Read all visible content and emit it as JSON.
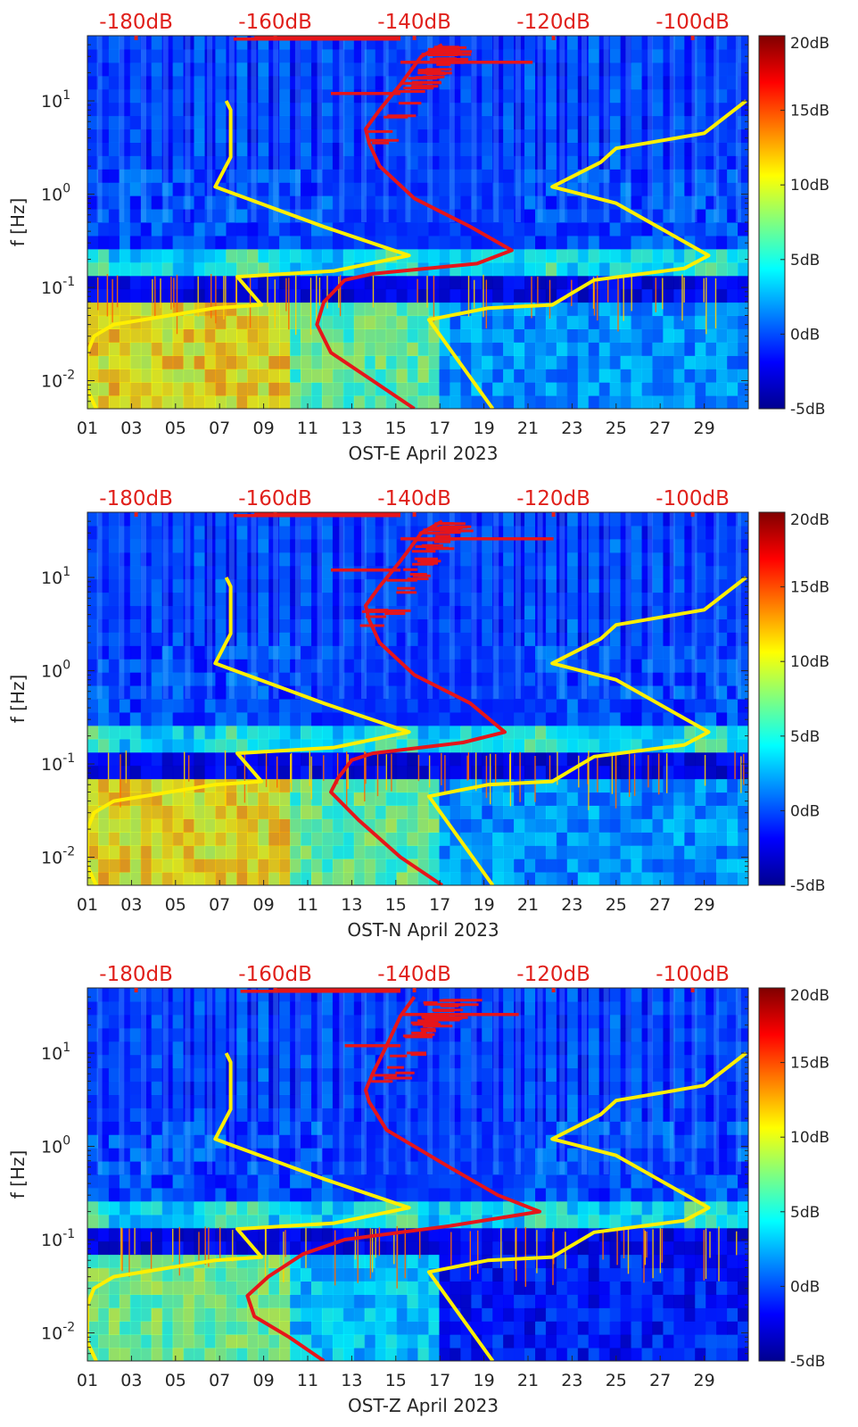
{
  "chart_data": [
    {
      "type": "heatmap",
      "xlabel": "OST-E April 2023",
      "ylabel": "f [Hz]",
      "x_ticks": [
        "01",
        "03",
        "05",
        "07",
        "09",
        "11",
        "13",
        "15",
        "17",
        "19",
        "21",
        "23",
        "25",
        "27",
        "29"
      ],
      "x_range_days": [
        1,
        31
      ],
      "y_scale": "log",
      "y_range_hz": [
        0.005,
        50
      ],
      "y_ticks": [
        {
          "base": "10",
          "exp": "-2",
          "value": 0.01
        },
        {
          "base": "10",
          "exp": "-1",
          "value": 0.1
        },
        {
          "base": "10",
          "exp": "0",
          "value": 1
        },
        {
          "base": "10",
          "exp": "1",
          "value": 10
        }
      ],
      "colorbar": {
        "range_db": [
          -5,
          20
        ],
        "ticks": [
          "20dB",
          "15dB",
          "10dB",
          "5dB",
          "0dB",
          "-5dB"
        ],
        "tick_values": [
          20,
          15,
          10,
          5,
          0,
          -5
        ]
      },
      "top_axis": {
        "color": "#e0201b",
        "ticks": [
          "-180dB",
          "-160dB",
          "-140dB",
          "-120dB",
          "-100dB"
        ],
        "tick_values": [
          -180,
          -160,
          -140,
          -120,
          -100
        ],
        "range_db": [
          -187,
          -92
        ]
      },
      "series": [
        {
          "color": "#ffef00",
          "points": [
            [
              7.3,
              10
            ],
            [
              7.5,
              8
            ],
            [
              7.5,
              2.5
            ],
            [
              6.8,
              1.2
            ],
            [
              11.7,
              0.45
            ],
            [
              15.6,
              0.22
            ],
            [
              12.2,
              0.15
            ],
            [
              7.8,
              0.13
            ],
            [
              8.9,
              0.065
            ],
            [
              6.8,
              0.06
            ],
            [
              2.2,
              0.04
            ],
            [
              1.3,
              0.03
            ],
            [
              1.0,
              0.02
            ],
            [
              1.0,
              0.008
            ],
            [
              1.4,
              0.005
            ]
          ]
        },
        {
          "color": "#ffef00",
          "points": [
            [
              30.9,
              10
            ],
            [
              29.0,
              4.5
            ],
            [
              25.0,
              3.1
            ],
            [
              24.3,
              2.2
            ],
            [
              22.1,
              1.2
            ],
            [
              25.0,
              0.8
            ],
            [
              29.2,
              0.22
            ],
            [
              28.1,
              0.16
            ],
            [
              24.0,
              0.12
            ],
            [
              22.1,
              0.065
            ],
            [
              19.2,
              0.06
            ],
            [
              16.5,
              0.045
            ],
            [
              19.4,
              0.005
            ]
          ]
        },
        {
          "color": "#e6151a",
          "points": [
            [
              -136,
              40
            ],
            [
              -139,
              30
            ],
            [
              -142,
              15
            ],
            [
              -145,
              8
            ],
            [
              -147,
              5
            ],
            [
              -146.5,
              3.5
            ],
            [
              -145,
              2
            ],
            [
              -140,
              0.9
            ],
            [
              -132,
              0.45
            ],
            [
              -126,
              0.25
            ],
            [
              -131,
              0.18
            ],
            [
              -146,
              0.14
            ],
            [
              -150,
              0.12
            ],
            [
              -153,
              0.07
            ],
            [
              -154,
              0.04
            ],
            [
              -152,
              0.02
            ],
            [
              -146,
              0.01
            ],
            [
              -140,
              0.005
            ]
          ]
        }
      ],
      "noise_band_db": [
        [
          -163,
          48
        ],
        [
          -166,
          46
        ],
        [
          -123,
          26
        ],
        [
          -152,
          12
        ]
      ]
    },
    {
      "type": "heatmap",
      "xlabel": "OST-N April 2023",
      "ylabel": "f [Hz]",
      "x_ticks": [
        "01",
        "03",
        "05",
        "07",
        "09",
        "11",
        "13",
        "15",
        "17",
        "19",
        "21",
        "23",
        "25",
        "27",
        "29"
      ],
      "x_range_days": [
        1,
        31
      ],
      "y_scale": "log",
      "y_range_hz": [
        0.005,
        50
      ],
      "y_ticks": [
        {
          "base": "10",
          "exp": "-2",
          "value": 0.01
        },
        {
          "base": "10",
          "exp": "-1",
          "value": 0.1
        },
        {
          "base": "10",
          "exp": "0",
          "value": 1
        },
        {
          "base": "10",
          "exp": "1",
          "value": 10
        }
      ],
      "colorbar": {
        "range_db": [
          -5,
          20
        ],
        "ticks": [
          "20dB",
          "15dB",
          "10dB",
          "5dB",
          "0dB",
          "-5dB"
        ],
        "tick_values": [
          20,
          15,
          10,
          5,
          0,
          -5
        ]
      },
      "top_axis": {
        "color": "#e0201b",
        "ticks": [
          "-180dB",
          "-160dB",
          "-140dB",
          "-120dB",
          "-100dB"
        ],
        "tick_values": [
          -180,
          -160,
          -140,
          -120,
          -100
        ],
        "range_db": [
          -187,
          -92
        ]
      },
      "series": [
        {
          "color": "#ffef00",
          "points": [
            [
              7.3,
              10
            ],
            [
              7.5,
              8
            ],
            [
              7.5,
              2.5
            ],
            [
              6.8,
              1.2
            ],
            [
              11.7,
              0.45
            ],
            [
              15.6,
              0.22
            ],
            [
              12.2,
              0.15
            ],
            [
              7.8,
              0.13
            ],
            [
              8.9,
              0.065
            ],
            [
              6.8,
              0.06
            ],
            [
              2.2,
              0.04
            ],
            [
              1.3,
              0.03
            ],
            [
              1.0,
              0.02
            ],
            [
              1.0,
              0.008
            ],
            [
              1.4,
              0.005
            ]
          ]
        },
        {
          "color": "#ffef00",
          "points": [
            [
              30.9,
              10
            ],
            [
              29.0,
              4.5
            ],
            [
              25.0,
              3.1
            ],
            [
              24.3,
              2.2
            ],
            [
              22.1,
              1.2
            ],
            [
              25.0,
              0.8
            ],
            [
              29.2,
              0.22
            ],
            [
              28.1,
              0.16
            ],
            [
              24.0,
              0.12
            ],
            [
              22.1,
              0.065
            ],
            [
              19.2,
              0.06
            ],
            [
              16.5,
              0.045
            ],
            [
              19.4,
              0.005
            ]
          ]
        },
        {
          "color": "#e6151a",
          "points": [
            [
              -136,
              40
            ],
            [
              -139,
              30
            ],
            [
              -142,
              15
            ],
            [
              -145,
              8
            ],
            [
              -147,
              5
            ],
            [
              -146.5,
              3.5
            ],
            [
              -145,
              2
            ],
            [
              -140,
              0.9
            ],
            [
              -132,
              0.45
            ],
            [
              -127,
              0.22
            ],
            [
              -133,
              0.17
            ],
            [
              -146,
              0.13
            ],
            [
              -149,
              0.11
            ],
            [
              -151,
              0.07
            ],
            [
              -152,
              0.05
            ],
            [
              -148,
              0.025
            ],
            [
              -142,
              0.01
            ],
            [
              -136,
              0.005
            ]
          ]
        }
      ],
      "noise_band_db": [
        [
          -163,
          48
        ],
        [
          -166,
          46
        ],
        [
          -120,
          26
        ],
        [
          -152,
          12
        ]
      ]
    },
    {
      "type": "heatmap",
      "xlabel": "OST-Z April 2023",
      "ylabel": "f [Hz]",
      "x_ticks": [
        "01",
        "03",
        "05",
        "07",
        "09",
        "11",
        "13",
        "15",
        "17",
        "19",
        "21",
        "23",
        "25",
        "27",
        "29"
      ],
      "x_range_days": [
        1,
        31
      ],
      "y_scale": "log",
      "y_range_hz": [
        0.005,
        50
      ],
      "y_ticks": [
        {
          "base": "10",
          "exp": "-2",
          "value": 0.01
        },
        {
          "base": "10",
          "exp": "-1",
          "value": 0.1
        },
        {
          "base": "10",
          "exp": "0",
          "value": 1
        },
        {
          "base": "10",
          "exp": "1",
          "value": 10
        }
      ],
      "colorbar": {
        "range_db": [
          -5,
          20
        ],
        "ticks": [
          "20dB",
          "15dB",
          "10dB",
          "5dB",
          "0dB",
          "-5dB"
        ],
        "tick_values": [
          20,
          15,
          10,
          5,
          0,
          -5
        ]
      },
      "top_axis": {
        "color": "#e0201b",
        "ticks": [
          "-180dB",
          "-160dB",
          "-140dB",
          "-120dB",
          "-100dB"
        ],
        "tick_values": [
          -180,
          -160,
          -140,
          -120,
          -100
        ],
        "range_db": [
          -187,
          -92
        ]
      },
      "series": [
        {
          "color": "#ffef00",
          "points": [
            [
              7.3,
              10
            ],
            [
              7.5,
              8
            ],
            [
              7.5,
              2.5
            ],
            [
              6.8,
              1.2
            ],
            [
              11.7,
              0.45
            ],
            [
              15.6,
              0.22
            ],
            [
              12.2,
              0.15
            ],
            [
              7.8,
              0.13
            ],
            [
              8.9,
              0.065
            ],
            [
              6.8,
              0.06
            ],
            [
              2.2,
              0.04
            ],
            [
              1.3,
              0.03
            ],
            [
              1.0,
              0.02
            ],
            [
              1.0,
              0.008
            ],
            [
              1.4,
              0.005
            ]
          ]
        },
        {
          "color": "#ffef00",
          "points": [
            [
              30.9,
              10
            ],
            [
              29.0,
              4.5
            ],
            [
              25.0,
              3.1
            ],
            [
              24.3,
              2.2
            ],
            [
              22.1,
              1.2
            ],
            [
              25.0,
              0.8
            ],
            [
              29.2,
              0.22
            ],
            [
              28.1,
              0.16
            ],
            [
              24.0,
              0.12
            ],
            [
              22.1,
              0.065
            ],
            [
              19.2,
              0.06
            ],
            [
              16.5,
              0.045
            ],
            [
              19.4,
              0.005
            ]
          ]
        },
        {
          "color": "#e6151a",
          "points": [
            [
              -140,
              40
            ],
            [
              -142,
              25
            ],
            [
              -144,
              12
            ],
            [
              -146,
              6
            ],
            [
              -147,
              4
            ],
            [
              -146.5,
              3
            ],
            [
              -144,
              1.5
            ],
            [
              -135,
              0.6
            ],
            [
              -128,
              0.3
            ],
            [
              -122,
              0.2
            ],
            [
              -135,
              0.14
            ],
            [
              -150,
              0.1
            ],
            [
              -156,
              0.07
            ],
            [
              -161,
              0.04
            ],
            [
              -164,
              0.025
            ],
            [
              -163,
              0.015
            ],
            [
              -158,
              0.009
            ],
            [
              -153,
              0.005
            ]
          ]
        }
      ],
      "noise_band_db": [
        [
          -160,
          48
        ],
        [
          -165,
          46
        ],
        [
          -125,
          26
        ],
        [
          -150,
          12
        ]
      ]
    }
  ]
}
